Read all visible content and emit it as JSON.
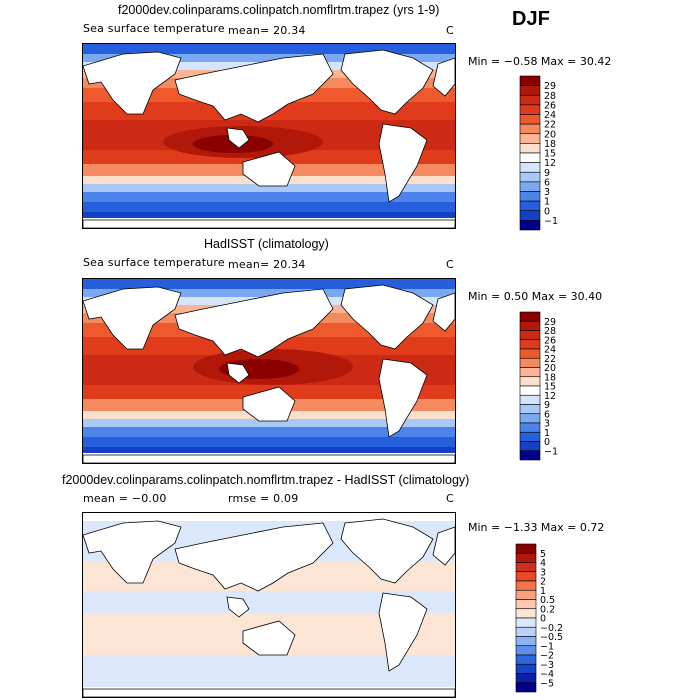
{
  "season": "DJF",
  "panels": [
    {
      "id": "model",
      "title": "f2000dev.colinparams.colinpatch.nomflrtm.trapez (yrs 1-9)",
      "left_text": "Sea surface temperature",
      "mean_text": "mean=   20.34",
      "units": "C",
      "minmax_text": "Min =   −0.58  Max =   30.42",
      "colorbar": {
        "labels": [
          "29",
          "28",
          "26",
          "24",
          "22",
          "20",
          "18",
          "15",
          "12",
          "9",
          "6",
          "3",
          "1",
          "0",
          "−1"
        ],
        "colors": [
          "#8b0000",
          "#b2180a",
          "#cc2a14",
          "#e03c1c",
          "#ee5a2e",
          "#f58a60",
          "#fbb595",
          "#fde0cc",
          "#ffffff",
          "#d4e4fb",
          "#a8c8f8",
          "#7aa8f2",
          "#4c84ec",
          "#265fdc",
          "#1440c8",
          "#00008b"
        ]
      }
    },
    {
      "id": "obs",
      "title": "HadISST (climatology)",
      "left_text": "Sea surface temperature",
      "mean_text": "mean=   20.34",
      "units": "C",
      "minmax_text": "Min =   0.50  Max =   30.40",
      "colorbar": {
        "labels": [
          "29",
          "28",
          "26",
          "24",
          "22",
          "20",
          "18",
          "15",
          "12",
          "9",
          "6",
          "3",
          "1",
          "0",
          "−1"
        ],
        "colors": [
          "#8b0000",
          "#b2180a",
          "#cc2a14",
          "#e03c1c",
          "#ee5a2e",
          "#f58a60",
          "#fbb595",
          "#fde0cc",
          "#ffffff",
          "#d4e4fb",
          "#a8c8f8",
          "#7aa8f2",
          "#4c84ec",
          "#265fdc",
          "#1440c8",
          "#00008b"
        ]
      }
    },
    {
      "id": "diff",
      "title": "f2000dev.colinparams.colinpatch.nomflrtm.trapez - HadISST (climatology)",
      "mean_text": "mean =   −0.00",
      "rmse_text": "rmse =   0.09",
      "units": "C",
      "minmax_text": "Min =   −1.33  Max =   0.72",
      "colorbar": {
        "labels": [
          "5",
          "4",
          "3",
          "2",
          "1",
          "0.5",
          "0.2",
          "0",
          "−0.2",
          "−0.5",
          "−1",
          "−2",
          "−3",
          "−4",
          "−5"
        ],
        "colors": [
          "#8b0000",
          "#b2180a",
          "#d0301a",
          "#e84a26",
          "#f4744a",
          "#f9a07c",
          "#fcc8ae",
          "#fde5d6",
          "#dbe8fb",
          "#b8d2f8",
          "#8cb4f2",
          "#5c90ea",
          "#2e68dc",
          "#1444c8",
          "#0a20a8",
          "#00008b"
        ]
      }
    }
  ]
}
